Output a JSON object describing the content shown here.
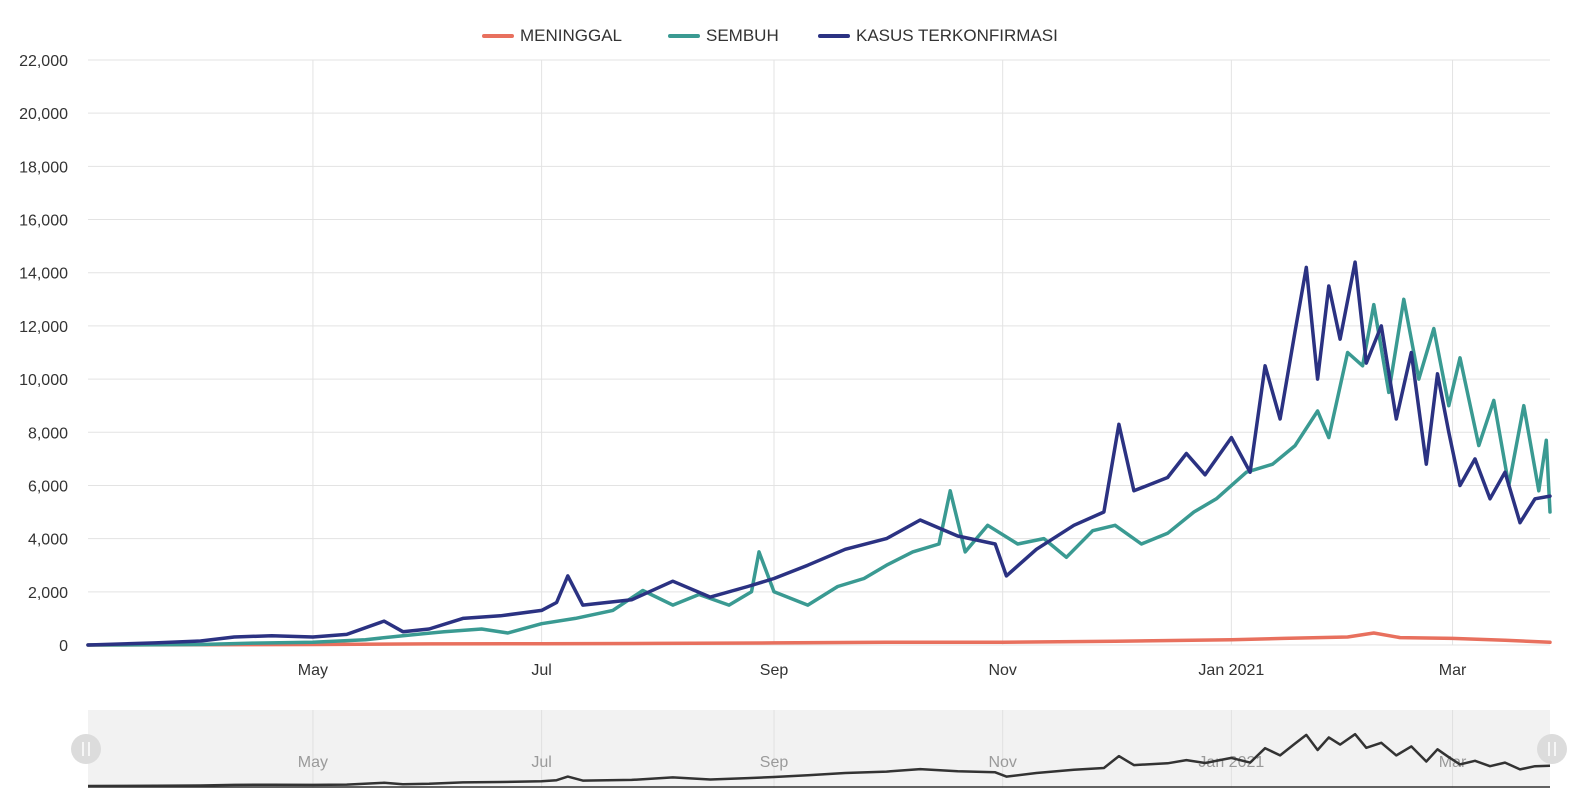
{
  "colors": {
    "meninggal": "#e8705e",
    "sembuh": "#3a9a92",
    "kasus": "#2b3282",
    "grid": "#e3e3e3",
    "navigator_bg": "#f2f2f2",
    "navigator_line": "#333333"
  },
  "chart_data": {
    "type": "line",
    "title": "",
    "xlabel": "",
    "ylabel": "",
    "x_range": [
      "2020-03-02",
      "2021-03-27"
    ],
    "ylim": [
      0,
      22000
    ],
    "y_ticks": [
      0,
      2000,
      4000,
      6000,
      8000,
      10000,
      12000,
      14000,
      16000,
      18000,
      20000,
      22000
    ],
    "y_tick_labels": [
      "0",
      "2,000",
      "4,000",
      "6,000",
      "8,000",
      "10,000",
      "12,000",
      "14,000",
      "16,000",
      "18,000",
      "20,000",
      "22,000"
    ],
    "x_ticks": [
      {
        "date": "2020-05-01",
        "label": "May"
      },
      {
        "date": "2020-07-01",
        "label": "Jul"
      },
      {
        "date": "2020-09-01",
        "label": "Sep"
      },
      {
        "date": "2020-11-01",
        "label": "Nov"
      },
      {
        "date": "2021-01-01",
        "label": "Jan 2021"
      },
      {
        "date": "2021-03-01",
        "label": "Mar"
      }
    ],
    "grid": true,
    "legend_position": "top-center",
    "series": [
      {
        "key": "meninggal",
        "name": "MENINGGAL",
        "points": [
          [
            "2020-03-02",
            0
          ],
          [
            "2020-04-01",
            10
          ],
          [
            "2020-05-01",
            20
          ],
          [
            "2020-06-01",
            40
          ],
          [
            "2020-07-01",
            50
          ],
          [
            "2020-08-01",
            60
          ],
          [
            "2020-09-01",
            80
          ],
          [
            "2020-10-01",
            100
          ],
          [
            "2020-11-01",
            100
          ],
          [
            "2020-12-01",
            140
          ],
          [
            "2021-01-01",
            200
          ],
          [
            "2021-01-15",
            250
          ],
          [
            "2021-02-01",
            300
          ],
          [
            "2021-02-08",
            450
          ],
          [
            "2021-02-15",
            280
          ],
          [
            "2021-03-01",
            250
          ],
          [
            "2021-03-15",
            180
          ],
          [
            "2021-03-27",
            100
          ]
        ]
      },
      {
        "key": "sembuh",
        "name": "SEMBUH",
        "points": [
          [
            "2020-03-02",
            0
          ],
          [
            "2020-04-01",
            20
          ],
          [
            "2020-04-15",
            70
          ],
          [
            "2020-05-01",
            100
          ],
          [
            "2020-05-15",
            200
          ],
          [
            "2020-05-25",
            350
          ],
          [
            "2020-06-05",
            500
          ],
          [
            "2020-06-15",
            600
          ],
          [
            "2020-06-22",
            450
          ],
          [
            "2020-07-01",
            800
          ],
          [
            "2020-07-10",
            1000
          ],
          [
            "2020-07-20",
            1300
          ],
          [
            "2020-07-28",
            2050
          ],
          [
            "2020-08-05",
            1500
          ],
          [
            "2020-08-12",
            1900
          ],
          [
            "2020-08-20",
            1500
          ],
          [
            "2020-08-26",
            2000
          ],
          [
            "2020-08-28",
            3500
          ],
          [
            "2020-09-01",
            2000
          ],
          [
            "2020-09-10",
            1500
          ],
          [
            "2020-09-18",
            2200
          ],
          [
            "2020-09-25",
            2500
          ],
          [
            "2020-10-01",
            3000
          ],
          [
            "2020-10-08",
            3500
          ],
          [
            "2020-10-15",
            3800
          ],
          [
            "2020-10-18",
            5800
          ],
          [
            "2020-10-22",
            3500
          ],
          [
            "2020-10-28",
            4500
          ],
          [
            "2020-11-05",
            3800
          ],
          [
            "2020-11-12",
            4000
          ],
          [
            "2020-11-18",
            3300
          ],
          [
            "2020-11-25",
            4300
          ],
          [
            "2020-12-01",
            4500
          ],
          [
            "2020-12-08",
            3800
          ],
          [
            "2020-12-15",
            4200
          ],
          [
            "2020-12-22",
            5000
          ],
          [
            "2020-12-28",
            5500
          ],
          [
            "2021-01-05",
            6500
          ],
          [
            "2021-01-12",
            6800
          ],
          [
            "2021-01-18",
            7500
          ],
          [
            "2021-01-24",
            8800
          ],
          [
            "2021-01-27",
            7800
          ],
          [
            "2021-02-01",
            11000
          ],
          [
            "2021-02-05",
            10500
          ],
          [
            "2021-02-08",
            12800
          ],
          [
            "2021-02-12",
            9500
          ],
          [
            "2021-02-16",
            13000
          ],
          [
            "2021-02-20",
            10000
          ],
          [
            "2021-02-24",
            11900
          ],
          [
            "2021-02-28",
            9000
          ],
          [
            "2021-03-03",
            10800
          ],
          [
            "2021-03-08",
            7500
          ],
          [
            "2021-03-12",
            9200
          ],
          [
            "2021-03-16",
            6000
          ],
          [
            "2021-03-20",
            9000
          ],
          [
            "2021-03-24",
            5800
          ],
          [
            "2021-03-26",
            7700
          ],
          [
            "2021-03-27",
            5000
          ]
        ]
      },
      {
        "key": "kasus",
        "name": "KASUS TERKONFIRMASI",
        "points": [
          [
            "2020-03-02",
            0
          ],
          [
            "2020-03-20",
            80
          ],
          [
            "2020-04-01",
            150
          ],
          [
            "2020-04-10",
            300
          ],
          [
            "2020-04-20",
            350
          ],
          [
            "2020-05-01",
            300
          ],
          [
            "2020-05-10",
            400
          ],
          [
            "2020-05-20",
            900
          ],
          [
            "2020-05-25",
            500
          ],
          [
            "2020-06-01",
            600
          ],
          [
            "2020-06-10",
            1000
          ],
          [
            "2020-06-20",
            1100
          ],
          [
            "2020-07-01",
            1300
          ],
          [
            "2020-07-05",
            1600
          ],
          [
            "2020-07-08",
            2600
          ],
          [
            "2020-07-12",
            1500
          ],
          [
            "2020-07-25",
            1700
          ],
          [
            "2020-08-05",
            2400
          ],
          [
            "2020-08-15",
            1800
          ],
          [
            "2020-08-25",
            2200
          ],
          [
            "2020-09-01",
            2500
          ],
          [
            "2020-09-10",
            3000
          ],
          [
            "2020-09-20",
            3600
          ],
          [
            "2020-10-01",
            4000
          ],
          [
            "2020-10-10",
            4700
          ],
          [
            "2020-10-20",
            4100
          ],
          [
            "2020-10-30",
            3800
          ],
          [
            "2020-11-02",
            2600
          ],
          [
            "2020-11-10",
            3600
          ],
          [
            "2020-11-20",
            4500
          ],
          [
            "2020-11-28",
            5000
          ],
          [
            "2020-12-02",
            8300
          ],
          [
            "2020-12-06",
            5800
          ],
          [
            "2020-12-15",
            6300
          ],
          [
            "2020-12-20",
            7200
          ],
          [
            "2020-12-25",
            6400
          ],
          [
            "2021-01-01",
            7800
          ],
          [
            "2021-01-06",
            6500
          ],
          [
            "2021-01-10",
            10500
          ],
          [
            "2021-01-14",
            8500
          ],
          [
            "2021-01-18",
            11800
          ],
          [
            "2021-01-21",
            14200
          ],
          [
            "2021-01-24",
            10000
          ],
          [
            "2021-01-27",
            13500
          ],
          [
            "2021-01-30",
            11500
          ],
          [
            "2021-02-03",
            14400
          ],
          [
            "2021-02-06",
            10600
          ],
          [
            "2021-02-10",
            12000
          ],
          [
            "2021-02-14",
            8500
          ],
          [
            "2021-02-18",
            11000
          ],
          [
            "2021-02-22",
            6800
          ],
          [
            "2021-02-25",
            10200
          ],
          [
            "2021-02-28",
            8000
          ],
          [
            "2021-03-03",
            6000
          ],
          [
            "2021-03-07",
            7000
          ],
          [
            "2021-03-11",
            5500
          ],
          [
            "2021-03-15",
            6500
          ],
          [
            "2021-03-19",
            4600
          ],
          [
            "2021-03-23",
            5500
          ],
          [
            "2021-03-27",
            5600
          ]
        ]
      }
    ],
    "navigator": {
      "x_ticks": [
        {
          "date": "2020-05-01",
          "label": "May"
        },
        {
          "date": "2020-07-01",
          "label": "Jul"
        },
        {
          "date": "2020-09-01",
          "label": "Sep"
        },
        {
          "date": "2020-11-01",
          "label": "Nov"
        },
        {
          "date": "2021-01-01",
          "label": "Jan 2021"
        },
        {
          "date": "2021-03-01",
          "label": "Mar"
        }
      ]
    }
  }
}
